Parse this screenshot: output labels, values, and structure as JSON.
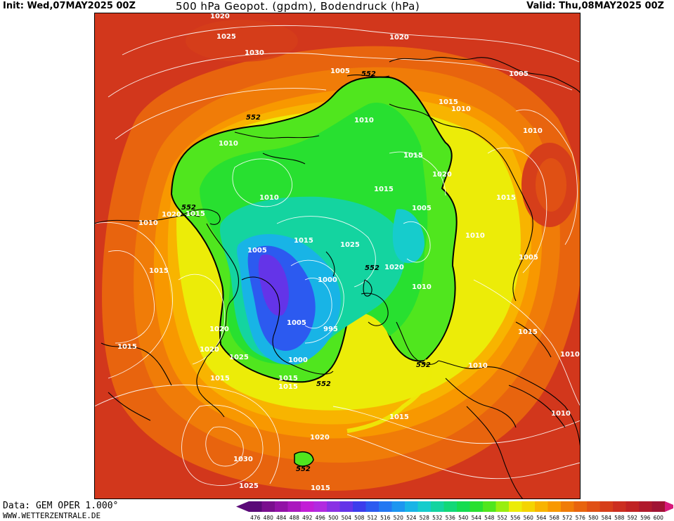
{
  "header": {
    "init": "Init: Wed,07MAY2025 00Z",
    "title": "500 hPa Geopot. (gpdm), Bodendruck (hPa)",
    "valid": "Valid: Thu,08MAY2025 00Z"
  },
  "footer": {
    "data_source": "Data: GEM OPER 1.000°",
    "website": "WWW.WETTERZENTRALE.DE"
  },
  "legend": {
    "values": [
      "476",
      "480",
      "484",
      "488",
      "492",
      "496",
      "500",
      "504",
      "508",
      "512",
      "516",
      "520",
      "524",
      "528",
      "532",
      "536",
      "540",
      "544",
      "548",
      "552",
      "556",
      "560",
      "564",
      "568",
      "572",
      "576",
      "580",
      "584",
      "588",
      "592",
      "596",
      "600"
    ],
    "colors": [
      "#5a0a78",
      "#7a0e8e",
      "#9212a6",
      "#aa18be",
      "#c21ed6",
      "#b22ae0",
      "#8a30e4",
      "#6434e8",
      "#3c3cec",
      "#2c5af0",
      "#2478f2",
      "#1c96f0",
      "#18b4e6",
      "#16cccc",
      "#14d4a0",
      "#12d878",
      "#14dc50",
      "#28e030",
      "#50e61e",
      "#98ee10",
      "#ecec08",
      "#f4d400",
      "#f8b400",
      "#f89800",
      "#f07c08",
      "#e8640e",
      "#e05014",
      "#d63e1a",
      "#cc2e20",
      "#c02224",
      "#b01a2c",
      "#a01434"
    ]
  },
  "map": {
    "pressure_labels": [
      "1020",
      "1025",
      "1030",
      "1020",
      "1005",
      "1005",
      "1015",
      "1010",
      "1010",
      "1010",
      "1010",
      "1015",
      "1015",
      "1020",
      "1015",
      "1005",
      "1010",
      "1020",
      "1015",
      "1010",
      "1025",
      "1005",
      "1015",
      "1010",
      "1005",
      "1000",
      "995",
      "1005",
      "1020",
      "1015",
      "1010",
      "1025",
      "1020",
      "1020",
      "1015",
      "1015",
      "1000",
      "1015",
      "1015",
      "1010",
      "1015",
      "1010",
      "1010",
      "1015",
      "1020",
      "1030",
      "1025",
      "1015"
    ],
    "contour_552": [
      "552",
      "552",
      "552",
      "552",
      "552",
      "552",
      "552"
    ],
    "colors": {
      "background_outer": "#cc2e20",
      "frame": "#000000",
      "isobar": "#ffffff",
      "contour": "#000000"
    }
  }
}
